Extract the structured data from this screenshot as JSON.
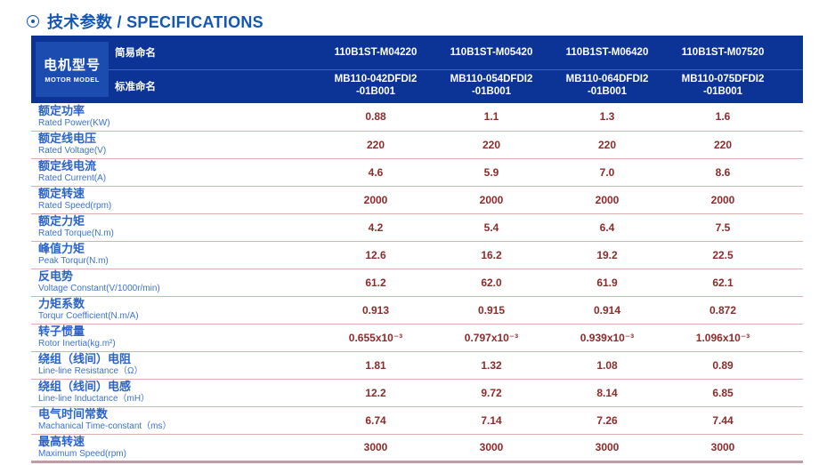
{
  "title": {
    "icon": "circled-dot",
    "text": "技术参数 / SPECIFICATIONS"
  },
  "table": {
    "header": {
      "motor_model_zh": "电机型号",
      "motor_model_en": "MOTOR MODEL",
      "simple_name_label": "简易命名",
      "standard_name_label": "标准命名",
      "models": [
        {
          "simple": "110B1ST-M04220",
          "standard": [
            "MB110-042DFDI2",
            "-01B001"
          ]
        },
        {
          "simple": "110B1ST-M05420",
          "standard": [
            "MB110-054DFDI2",
            "-01B001"
          ]
        },
        {
          "simple": "110B1ST-M06420",
          "standard": [
            "MB110-064DFDI2",
            "-01B001"
          ]
        },
        {
          "simple": "110B1ST-M07520",
          "standard": [
            "MB110-075DFDI2",
            "-01B001"
          ]
        }
      ]
    },
    "rows": [
      {
        "zh": "额定功率",
        "en": "Rated Power(KW)",
        "values": [
          "0.88",
          "1.1",
          "1.3",
          "1.6"
        ]
      },
      {
        "zh": "额定线电压",
        "en": "Rated Voltage(V)",
        "values": [
          "220",
          "220",
          "220",
          "220"
        ]
      },
      {
        "zh": "额定线电流",
        "en": "Rated Current(A)",
        "values": [
          "4.6",
          "5.9",
          "7.0",
          "8.6"
        ]
      },
      {
        "zh": "额定转速",
        "en": "Rated Speed(rpm)",
        "values": [
          "2000",
          "2000",
          "2000",
          "2000"
        ]
      },
      {
        "zh": "额定力矩",
        "en": "Rated Torque(N.m)",
        "values": [
          "4.2",
          "5.4",
          "6.4",
          "7.5"
        ]
      },
      {
        "zh": "峰值力矩",
        "en": "Peak Torqur(N.m)",
        "values": [
          "12.6",
          "16.2",
          "19.2",
          "22.5"
        ]
      },
      {
        "zh": "反电势",
        "en": "Voltage Constant(V/1000r/min)",
        "values": [
          "61.2",
          "62.0",
          "61.9",
          "62.1"
        ]
      },
      {
        "zh": "力矩系数",
        "en": "Torqur Coefficient(N.m/A)",
        "values": [
          "0.913",
          "0.915",
          "0.914",
          "0.872"
        ]
      },
      {
        "zh": "转子惯量",
        "en": "Rotor Inertia(kg.m²)",
        "values": [
          "0.655x10⁻³",
          "0.797x10⁻³",
          "0.939x10⁻³",
          "1.096x10⁻³"
        ]
      },
      {
        "zh": "绕组（线间）电阻",
        "en": "Line-line Resistance（Ω）",
        "values": [
          "1.81",
          "1.32",
          "1.08",
          "0.89"
        ]
      },
      {
        "zh": "绕组（线间）电感",
        "en": "Line-line Inductance（mH）",
        "values": [
          "12.2",
          "9.72",
          "8.14",
          "6.85"
        ]
      },
      {
        "zh": "电气时间常数",
        "en": "Machanical Time-constant（ms）",
        "values": [
          "6.74",
          "7.14",
          "7.26",
          "7.44"
        ]
      },
      {
        "zh": "最高转速",
        "en": "Maximum Speed(rpm)",
        "values": [
          "3000",
          "3000",
          "3000",
          "3000"
        ]
      }
    ]
  },
  "colors": {
    "title_blue": "#1356b4",
    "header_bg": "#0c3496",
    "motor_box_bg": "#1d4cb0",
    "label_zh_blue": "#2b63c8",
    "label_en_blue": "#3b71cf",
    "value_red": "#8d2a2a",
    "row_divider": "#dcaeae",
    "bottom_border": "#c09aa6"
  }
}
